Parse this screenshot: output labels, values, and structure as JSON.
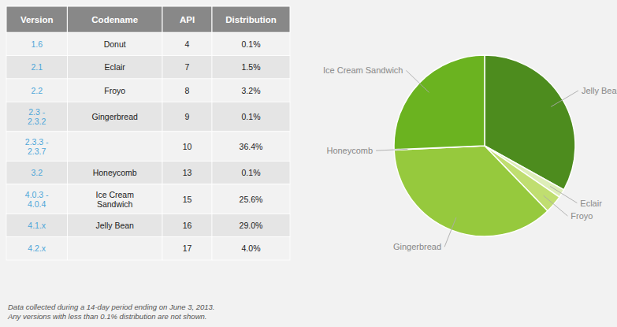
{
  "chart_data": [
    {
      "type": "table",
      "headers": [
        "Version",
        "Codename",
        "API",
        "Distribution"
      ],
      "rows": [
        [
          "1.6",
          "Donut",
          "4",
          "0.1%"
        ],
        [
          "2.1",
          "Eclair",
          "7",
          "1.5%"
        ],
        [
          "2.2",
          "Froyo",
          "8",
          "3.2%"
        ],
        [
          "2.3 -\n2.3.2",
          "Gingerbread",
          "9",
          "0.1%"
        ],
        [
          "2.3.3 -\n2.3.7",
          null,
          "10",
          "36.4%"
        ],
        [
          "3.2",
          "Honeycomb",
          "13",
          "0.1%"
        ],
        [
          "4.0.3 -\n4.0.4",
          "Ice Cream\nSandwich",
          "15",
          "25.6%"
        ],
        [
          "4.1.x",
          "Jelly Bean",
          "16",
          "29.0%"
        ],
        [
          "4.2.x",
          null,
          "17",
          "4.0%"
        ]
      ],
      "color": "#4da6d9",
      "footnote": "Data collected during a 14-day period ending on June 3, 2013.\nAny versions with less than 0.1% distribution are not shown."
    },
    {
      "type": "pie",
      "categories": [
        "Jelly Bean",
        "Eclair",
        "Froyo",
        "Gingerbread",
        "Honeycomb",
        "Ice Cream Sandwich"
      ],
      "values": [
        33.0,
        1.5,
        3.2,
        36.4,
        0.1,
        25.6
      ],
      "colors": [
        "#4d8c1e",
        "#deeeb8",
        "#c0de70",
        "#96c93d",
        "#5a9e18",
        "#6bb320"
      ]
    }
  ]
}
